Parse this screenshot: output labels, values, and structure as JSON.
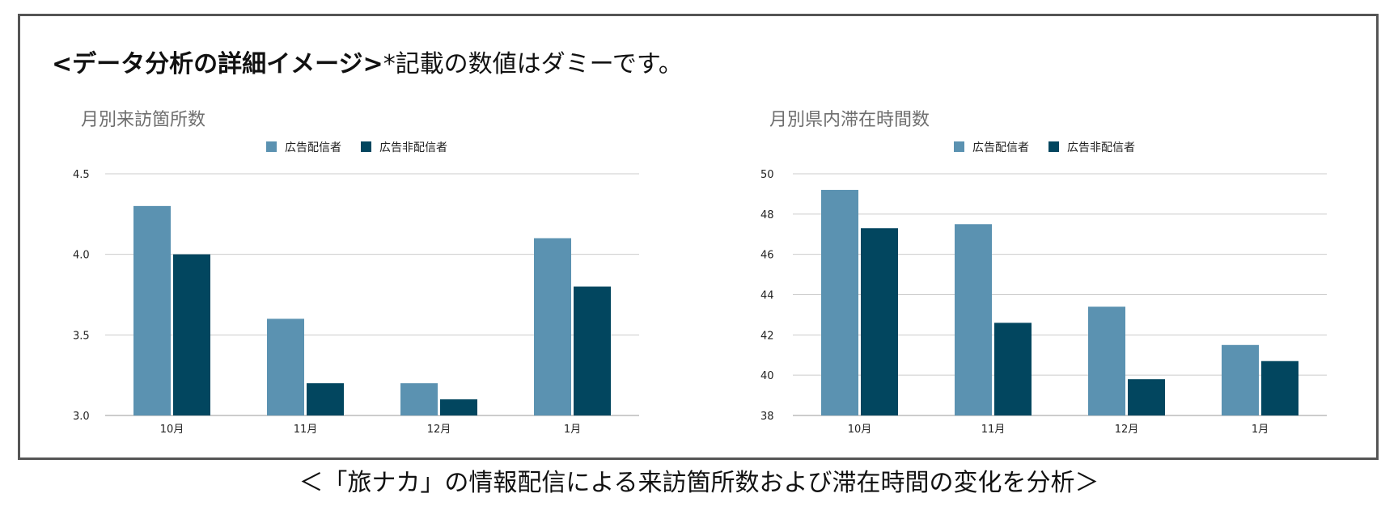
{
  "heading": {
    "bold_part": "<データ分析の詳細イメージ>",
    "note": "*記載の数値はダミーです。"
  },
  "caption": "＜「旅ナカ」の情報配信による来訪箇所数および滞在時間の変化を分析＞",
  "colors": {
    "series1": "#5b92b1",
    "series2": "#02465f",
    "grid": "#cccccc",
    "axis": "#999999",
    "title": "#6e6e6e",
    "frame": "#555555"
  },
  "chart_data": [
    {
      "type": "bar",
      "title": "月別来訪箇所数",
      "categories": [
        "10月",
        "11月",
        "12月",
        "1月"
      ],
      "series": [
        {
          "name": "広告配信者",
          "values": [
            4.3,
            3.6,
            3.2,
            4.1
          ]
        },
        {
          "name": "広告非配信者",
          "values": [
            4.0,
            3.2,
            3.1,
            3.8
          ]
        }
      ],
      "ylim": [
        3.0,
        4.5
      ],
      "yticks": [
        "3.0",
        "3.5",
        "4.0",
        "4.5"
      ],
      "ytick_values": [
        3.0,
        3.5,
        4.0,
        4.5
      ],
      "xlabel": "",
      "ylabel": "",
      "grid": true,
      "legend": "top-center"
    },
    {
      "type": "bar",
      "title": "月別県内滞在時間数",
      "categories": [
        "10月",
        "11月",
        "12月",
        "1月"
      ],
      "series": [
        {
          "name": "広告配信者",
          "values": [
            49.2,
            47.5,
            43.4,
            41.5
          ]
        },
        {
          "name": "広告非配信者",
          "values": [
            47.3,
            42.6,
            39.8,
            40.7
          ]
        }
      ],
      "ylim": [
        38,
        50
      ],
      "yticks": [
        "38",
        "40",
        "42",
        "44",
        "46",
        "48",
        "50"
      ],
      "ytick_values": [
        38,
        40,
        42,
        44,
        46,
        48,
        50
      ],
      "xlabel": "",
      "ylabel": "",
      "grid": true,
      "legend": "top-center"
    }
  ]
}
